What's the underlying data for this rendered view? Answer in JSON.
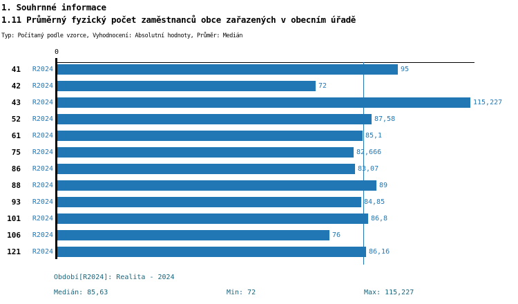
{
  "header": {
    "title": "1. Souhrnné informace",
    "subtitle": "1.11 Průměrný fyzický počet zaměstnanců obce zařazených v obecním úřadě",
    "meta": "Typ: Počítaný podle vzorce, Vyhodnocení: Absolutní hodnoty, Průměr: Medián"
  },
  "chart_data": {
    "type": "bar",
    "orientation": "horizontal",
    "title": "1.11 Průměrný fyzický počet zaměstnanců obce zařazených v obecním úřadě",
    "axis_origin_label": "0",
    "series_label": "R2024",
    "categories": [
      "41",
      "42",
      "43",
      "52",
      "61",
      "75",
      "86",
      "88",
      "93",
      "101",
      "106",
      "121"
    ],
    "values": [
      95,
      72,
      115.227,
      87.58,
      85.1,
      82.666,
      83.07,
      89,
      84.85,
      86.8,
      76,
      86.16
    ],
    "value_labels": [
      "95",
      "72",
      "115,227",
      "87,58",
      "85,1",
      "82,666",
      "83,07",
      "89",
      "84,85",
      "86,8",
      "76",
      "86,16"
    ],
    "xlim": [
      0,
      115.227
    ],
    "median": 85.63,
    "grid": false,
    "legend_position": "none",
    "bar_color": "#2077b4",
    "median_line_color": "#2077b4",
    "label_color": "#2077b4",
    "axis_color": "#000000"
  },
  "footer": {
    "period": "Období[R2024]: Realita - 2024",
    "median": "Medián: 85,63",
    "min": "Min: 72",
    "max": "Max: 115,227",
    "text_color": "#17657d"
  }
}
